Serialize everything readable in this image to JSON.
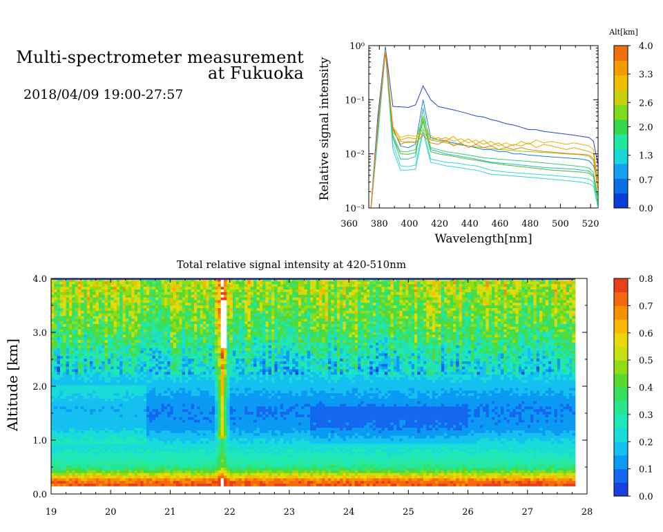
{
  "header": {
    "title_line1": "Multi-spectrometer measurement",
    "title_line2": "at Fukuoka",
    "date_range": "2018/04/09 19:00-27:57"
  },
  "chart_data": [
    {
      "type": "line",
      "xlabel": "Wavelength[nm]",
      "ylabel": "Relative signal intensity",
      "xlim": [
        373,
        525
      ],
      "ylim": [
        0.001,
        1
      ],
      "yscale": "log",
      "x_ticks": [
        "360",
        "380",
        "400",
        "420",
        "440",
        "460",
        "480",
        "500",
        "520"
      ],
      "x_tick_values": [
        360,
        380,
        400,
        420,
        440,
        460,
        480,
        500,
        520
      ],
      "y_ticks": [
        "10⁰",
        "10⁻¹",
        "10⁻²",
        "10⁻³"
      ],
      "y_tick_values": [
        1,
        0.1,
        0.01,
        0.001
      ],
      "grid": false,
      "legend": {
        "title": "Alt[km]",
        "placement": "right colorbar",
        "ticks": [
          "4.0",
          "3.3",
          "2.6",
          "2.0",
          "1.3",
          "0.7",
          "0.0"
        ],
        "tick_values": [
          4.0,
          3.3,
          2.6,
          2.0,
          1.3,
          0.7,
          0.0
        ],
        "colors": [
          "#0a3dd8",
          "#0a6ee8",
          "#15a0f2",
          "#19d8d8",
          "#1fe8a0",
          "#35d84a",
          "#7fdc18",
          "#c8d010",
          "#f0c000",
          "#f59a00",
          "#f07010"
        ]
      },
      "x": [
        374,
        379,
        384,
        389,
        394,
        399,
        404,
        409,
        414,
        419,
        424,
        429,
        434,
        439,
        444,
        449,
        454,
        459,
        464,
        469,
        474,
        479,
        484,
        489,
        494,
        499,
        504,
        509,
        514,
        519,
        522,
        525
      ],
      "series": [
        {
          "color": "#1e46c8",
          "values": [
            0.0007,
            0.05,
            0.95,
            0.075,
            0.074,
            0.072,
            0.08,
            0.18,
            0.1,
            0.075,
            0.07,
            0.065,
            0.06,
            0.055,
            0.05,
            0.048,
            0.043,
            0.04,
            0.036,
            0.034,
            0.031,
            0.028,
            0.028,
            0.026,
            0.025,
            0.024,
            0.023,
            0.022,
            0.021,
            0.02,
            0.017,
            0.006
          ]
        },
        {
          "color": "#1a7cf0",
          "values": [
            0.0007,
            0.04,
            0.9,
            0.03,
            0.014,
            0.013,
            0.015,
            0.1,
            0.02,
            0.018,
            0.017,
            0.016,
            0.015,
            0.014,
            0.013,
            0.012,
            0.012,
            0.011,
            0.011,
            0.01,
            0.01,
            0.0095,
            0.0093,
            0.009,
            0.0088,
            0.0086,
            0.0084,
            0.0082,
            0.008,
            0.0075,
            0.006,
            0.003
          ]
        },
        {
          "color": "#22b8c8",
          "values": [
            0.0007,
            0.03,
            0.85,
            0.02,
            0.008,
            0.008,
            0.009,
            0.07,
            0.012,
            0.011,
            0.01,
            0.0095,
            0.009,
            0.0085,
            0.008,
            0.0075,
            0.007,
            0.0068,
            0.0066,
            0.0064,
            0.0062,
            0.006,
            0.0058,
            0.0056,
            0.0055,
            0.0054,
            0.0053,
            0.0052,
            0.005,
            0.0048,
            0.004,
            0.0015
          ]
        },
        {
          "color": "#2ee0c0",
          "values": [
            0.0007,
            0.025,
            0.8,
            0.015,
            0.006,
            0.0058,
            0.0062,
            0.03,
            0.008,
            0.0075,
            0.007,
            0.0068,
            0.0066,
            0.0062,
            0.006,
            0.0055,
            0.005,
            0.0048,
            0.0046,
            0.0045,
            0.0044,
            0.0043,
            0.0042,
            0.0041,
            0.004,
            0.0039,
            0.0038,
            0.0037,
            0.0036,
            0.0034,
            0.003,
            0.001
          ]
        },
        {
          "color": "#35d0e0",
          "values": [
            0.0007,
            0.02,
            0.75,
            0.012,
            0.005,
            0.005,
            0.0052,
            0.025,
            0.007,
            0.0065,
            0.006,
            0.0058,
            0.0055,
            0.0052,
            0.005,
            0.0046,
            0.0042,
            0.0041,
            0.004,
            0.0039,
            0.0038,
            0.0037,
            0.0036,
            0.0035,
            0.0034,
            0.0033,
            0.0032,
            0.0031,
            0.003,
            0.0028,
            0.0025,
            0.001
          ]
        },
        {
          "color": "#30d070",
          "values": [
            0.0007,
            0.035,
            0.85,
            0.022,
            0.011,
            0.011,
            0.012,
            0.045,
            0.013,
            0.012,
            0.011,
            0.0105,
            0.01,
            0.0095,
            0.009,
            0.0085,
            0.0082,
            0.008,
            0.0078,
            0.0076,
            0.0074,
            0.0072,
            0.007,
            0.0068,
            0.0066,
            0.0064,
            0.0062,
            0.006,
            0.0058,
            0.0055,
            0.0045,
            0.0015
          ]
        },
        {
          "color": "#40c020",
          "values": [
            0.0007,
            0.03,
            0.8,
            0.02,
            0.01,
            0.0098,
            0.0105,
            0.04,
            0.011,
            0.01,
            0.0095,
            0.009,
            0.0085,
            0.008,
            0.0076,
            0.0072,
            0.0068,
            0.0065,
            0.0062,
            0.006,
            0.0058,
            0.0056,
            0.0054,
            0.0052,
            0.005,
            0.0049,
            0.0048,
            0.0047,
            0.0046,
            0.0044,
            0.0038,
            0.0012
          ]
        },
        {
          "color": "#8ccc10",
          "values": [
            0.0007,
            0.033,
            0.8,
            0.025,
            0.017,
            0.016,
            0.017,
            0.05,
            0.018,
            0.017,
            0.016,
            0.015,
            0.0145,
            0.014,
            0.0135,
            0.013,
            0.0125,
            0.012,
            0.0118,
            0.0115,
            0.0112,
            0.011,
            0.0108,
            0.0106,
            0.0104,
            0.0102,
            0.01,
            0.0098,
            0.0096,
            0.009,
            0.0075,
            0.002
          ]
        },
        {
          "color": "#e0b800",
          "values": [
            0.0007,
            0.036,
            0.85,
            0.032,
            0.02,
            0.022,
            0.021,
            0.028,
            0.022,
            0.018,
            0.02,
            0.017,
            0.019,
            0.016,
            0.018,
            0.015,
            0.017,
            0.014,
            0.016,
            0.014,
            0.017,
            0.015,
            0.018,
            0.016,
            0.017,
            0.016,
            0.015,
            0.016,
            0.015,
            0.014,
            0.012,
            0.003
          ]
        },
        {
          "color": "#f0a000",
          "values": [
            0.0007,
            0.035,
            0.8,
            0.03,
            0.018,
            0.02,
            0.019,
            0.025,
            0.018,
            0.02,
            0.017,
            0.021,
            0.016,
            0.019,
            0.015,
            0.018,
            0.014,
            0.016,
            0.013,
            0.015,
            0.014,
            0.016,
            0.013,
            0.015,
            0.014,
            0.013,
            0.012,
            0.013,
            0.012,
            0.011,
            0.01,
            0.0025
          ]
        },
        {
          "color": "#f07a10",
          "values": [
            0.0007,
            0.034,
            0.75,
            0.028,
            0.015,
            0.017,
            0.016,
            0.022,
            0.016,
            0.015,
            0.018,
            0.014,
            0.016,
            0.013,
            0.015,
            0.013,
            0.014,
            0.012,
            0.013,
            0.012,
            0.013,
            0.012,
            0.0115,
            0.011,
            0.0108,
            0.0105,
            0.0102,
            0.01,
            0.0098,
            0.0095,
            0.008,
            0.002
          ]
        }
      ]
    },
    {
      "type": "heatmap",
      "title": "Total relative signal intensity at 420-510nm",
      "xlabel": "",
      "ylabel": "Altitude [km]",
      "xlim": [
        19,
        28
      ],
      "ylim": [
        0.0,
        4.0
      ],
      "x_ticks": [
        "19",
        "20",
        "21",
        "22",
        "23",
        "24",
        "25",
        "26",
        "27",
        "28"
      ],
      "x_tick_values": [
        19,
        20,
        21,
        22,
        23,
        24,
        25,
        26,
        27,
        28
      ],
      "y_ticks": [
        "0.0",
        "1.0",
        "2.0",
        "3.0",
        "4.0"
      ],
      "y_tick_values": [
        0.0,
        1.0,
        2.0,
        3.0,
        4.0
      ],
      "data_x_range": [
        19.0,
        27.8
      ],
      "data_y_range": [
        0.15,
        4.0
      ],
      "grid": false,
      "colorbar": {
        "placement": "right",
        "ticks": [
          "0.8",
          "0.7",
          "0.6",
          "0.5",
          "0.4",
          "0.3",
          "0.2",
          "0.1",
          "0.0"
        ],
        "tick_values": [
          0.8,
          0.7,
          0.6,
          0.5,
          0.4,
          0.3,
          0.2,
          0.1,
          0.0
        ],
        "colors": [
          "#1a3fe0",
          "#1468f0",
          "#0b9af4",
          "#14c0f0",
          "#19dcd8",
          "#1fe8b8",
          "#27e890",
          "#35e060",
          "#5ad830",
          "#92dc14",
          "#c8e010",
          "#ecd808",
          "#f8b804",
          "#f89004",
          "#f46810",
          "#e8401a"
        ]
      },
      "profile_description_levels": [
        {
          "alt": 0.15,
          "value": 0.75
        },
        {
          "alt": 0.25,
          "value": 0.72
        },
        {
          "alt": 0.35,
          "value": 0.55
        },
        {
          "alt": 0.5,
          "value": 0.32
        },
        {
          "alt": 0.8,
          "value": 0.25
        },
        {
          "alt": 1.0,
          "value": 0.2
        },
        {
          "alt": 1.25,
          "value": 0.12
        },
        {
          "alt": 1.6,
          "value": 0.1
        },
        {
          "alt": 2.0,
          "value": 0.17
        },
        {
          "alt": 2.5,
          "value": 0.25
        },
        {
          "alt": 3.0,
          "value": 0.38
        },
        {
          "alt": 3.5,
          "value": 0.45
        },
        {
          "alt": 3.9,
          "value": 0.5
        }
      ]
    }
  ]
}
